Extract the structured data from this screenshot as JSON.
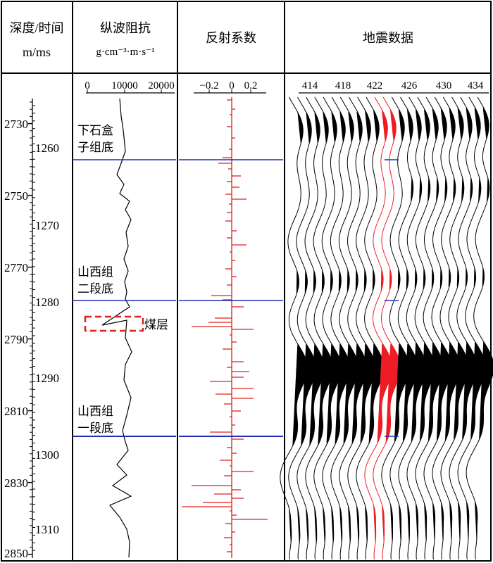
{
  "headers": {
    "depth_time": [
      "深度/时间",
      "m/ms"
    ],
    "impedance": [
      "纵波阻抗",
      "g·cm⁻³·m·s⁻¹"
    ],
    "reflection": "反射系数",
    "seismic": "地震数据"
  },
  "impedance_ticks": [
    "0",
    "10000",
    "20000"
  ],
  "reflection_ticks": [
    "−0.2",
    "0",
    "0.2"
  ],
  "seismic_ticks": [
    "414",
    "418",
    "422",
    "426",
    "430",
    "434"
  ],
  "depth_labels": [
    "2730",
    "2750",
    "2770",
    "2790",
    "2810",
    "2830",
    "2850"
  ],
  "time_labels": [
    "1260",
    "1270",
    "1280",
    "1290",
    "1300",
    "1310"
  ],
  "horizons": [
    {
      "label_line1": "下石盒",
      "label_line2": "子组底"
    },
    {
      "label_line1": "山西组",
      "label_line2": "二段底"
    },
    {
      "label_line1": "山西组",
      "label_line2": "一段底"
    }
  ],
  "coal_label": "煤层",
  "colors": {
    "horizon": "#1f2fb0",
    "reflection": "#e0201c",
    "highlight": "#ee1c24",
    "coal_box": "#e0201c"
  }
}
